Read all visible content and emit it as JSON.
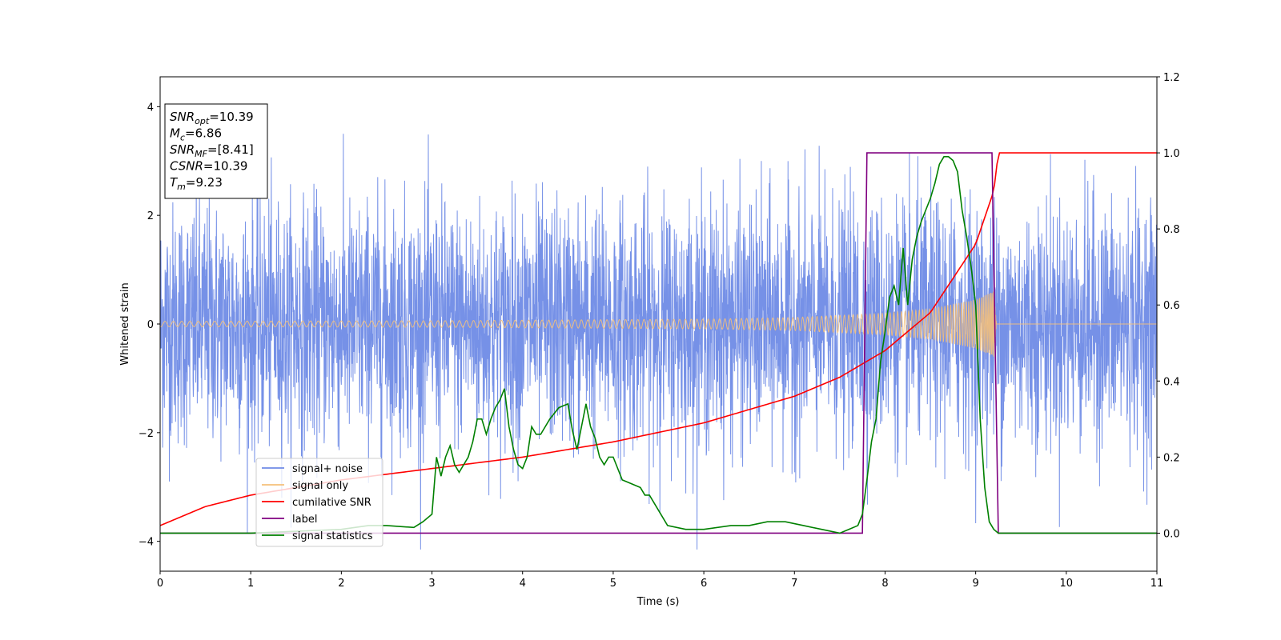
{
  "chart_data": {
    "type": "line",
    "xlabel": "Time (s)",
    "ylabel": "Whitened strain",
    "xlim": [
      0,
      11
    ],
    "ylim": [
      -4.55,
      4.55
    ],
    "y2lim": [
      -0.1,
      1.2
    ],
    "grid": false,
    "legend_placement": "lower-left",
    "x_ticks": [
      "0",
      "1",
      "2",
      "3",
      "4",
      "5",
      "6",
      "7",
      "8",
      "9",
      "10",
      "11"
    ],
    "y_ticks": [
      "4",
      "2",
      "0",
      "−2",
      "−4"
    ],
    "y2_ticks": [
      "1.2",
      "1.0",
      "0.8",
      "0.6",
      "0.4",
      "0.2",
      "0.0"
    ],
    "annotation": {
      "lines": [
        {
          "base": "SNR",
          "sub": "opt",
          "rest": "=10.39"
        },
        {
          "base": "M",
          "sub": "c",
          "rest": "=6.86"
        },
        {
          "base": "SNR",
          "sub": "MF",
          "rest": "=[8.41]"
        },
        {
          "base": "CSNR",
          "sub": "",
          "rest": "=10.39"
        },
        {
          "base": "T",
          "sub": "m",
          "rest": "=9.23"
        }
      ]
    },
    "series": [
      {
        "name": "signal+ noise",
        "axis": "left",
        "color": "#6f8be6",
        "noise_envelope": {
          "typical_amplitude": 1.3,
          "peak_max": 3.5,
          "peak_min": -4.15
        }
      },
      {
        "name": "signal only",
        "axis": "left",
        "color": "#f5c07a",
        "envelope": {
          "x": [
            0,
            3,
            6,
            7,
            8,
            8.5,
            9,
            9.2,
            9.23,
            11
          ],
          "amp": [
            0.05,
            0.06,
            0.09,
            0.12,
            0.2,
            0.28,
            0.45,
            0.6,
            0.0,
            0.0
          ]
        }
      },
      {
        "name": "cumilative SNR",
        "axis": "right",
        "color": "#ff0000",
        "x": [
          0,
          0.5,
          1,
          2,
          3,
          4,
          5,
          6,
          7,
          7.5,
          8,
          8.5,
          9,
          9.2,
          9.25,
          11
        ],
        "y": [
          0.02,
          0.07,
          0.1,
          0.14,
          0.17,
          0.2,
          0.24,
          0.29,
          0.36,
          0.41,
          0.48,
          0.58,
          0.76,
          0.9,
          1.0,
          1.0
        ]
      },
      {
        "name": "label",
        "axis": "right",
        "color": "#800080",
        "x": [
          0,
          7.75,
          7.8,
          9.18,
          9.25,
          11
        ],
        "y": [
          0,
          0,
          1,
          1,
          0,
          0
        ]
      },
      {
        "name": "signal statistics",
        "axis": "right",
        "color": "#008000",
        "x": [
          0,
          0.5,
          1,
          2,
          2.3,
          2.5,
          2.8,
          2.9,
          3.0,
          3.05,
          3.1,
          3.15,
          3.2,
          3.25,
          3.3,
          3.35,
          3.4,
          3.45,
          3.5,
          3.55,
          3.6,
          3.65,
          3.7,
          3.75,
          3.8,
          3.85,
          3.9,
          3.95,
          4.0,
          4.05,
          4.1,
          4.15,
          4.2,
          4.3,
          4.4,
          4.5,
          4.55,
          4.6,
          4.65,
          4.7,
          4.75,
          4.8,
          4.85,
          4.9,
          4.95,
          5.0,
          5.1,
          5.2,
          5.3,
          5.35,
          5.4,
          5.5,
          5.6,
          5.8,
          6.0,
          6.3,
          6.5,
          6.7,
          6.9,
          7.1,
          7.3,
          7.5,
          7.6,
          7.7,
          7.75,
          7.8,
          7.85,
          7.9,
          7.95,
          8.0,
          8.05,
          8.1,
          8.15,
          8.2,
          8.25,
          8.3,
          8.35,
          8.4,
          8.45,
          8.5,
          8.55,
          8.6,
          8.65,
          8.7,
          8.75,
          8.8,
          8.85,
          8.9,
          8.95,
          9.0,
          9.05,
          9.1,
          9.15,
          9.2,
          9.25,
          9.3,
          9.4,
          9.5,
          11
        ],
        "y": [
          0.0,
          0.0,
          0.0,
          0.01,
          0.02,
          0.02,
          0.015,
          0.03,
          0.05,
          0.2,
          0.15,
          0.2,
          0.23,
          0.18,
          0.16,
          0.18,
          0.2,
          0.24,
          0.3,
          0.3,
          0.26,
          0.3,
          0.33,
          0.35,
          0.38,
          0.28,
          0.22,
          0.18,
          0.17,
          0.2,
          0.28,
          0.26,
          0.26,
          0.3,
          0.33,
          0.34,
          0.27,
          0.22,
          0.28,
          0.34,
          0.28,
          0.25,
          0.2,
          0.18,
          0.2,
          0.2,
          0.14,
          0.13,
          0.12,
          0.1,
          0.1,
          0.06,
          0.02,
          0.01,
          0.01,
          0.02,
          0.02,
          0.03,
          0.03,
          0.02,
          0.01,
          0.0,
          0.01,
          0.02,
          0.05,
          0.14,
          0.24,
          0.3,
          0.45,
          0.53,
          0.62,
          0.65,
          0.6,
          0.75,
          0.6,
          0.72,
          0.78,
          0.82,
          0.85,
          0.88,
          0.92,
          0.97,
          0.99,
          0.99,
          0.98,
          0.95,
          0.85,
          0.78,
          0.7,
          0.6,
          0.3,
          0.12,
          0.03,
          0.01,
          0.0,
          0.0,
          0.0,
          0.0,
          0.0
        ]
      }
    ]
  }
}
